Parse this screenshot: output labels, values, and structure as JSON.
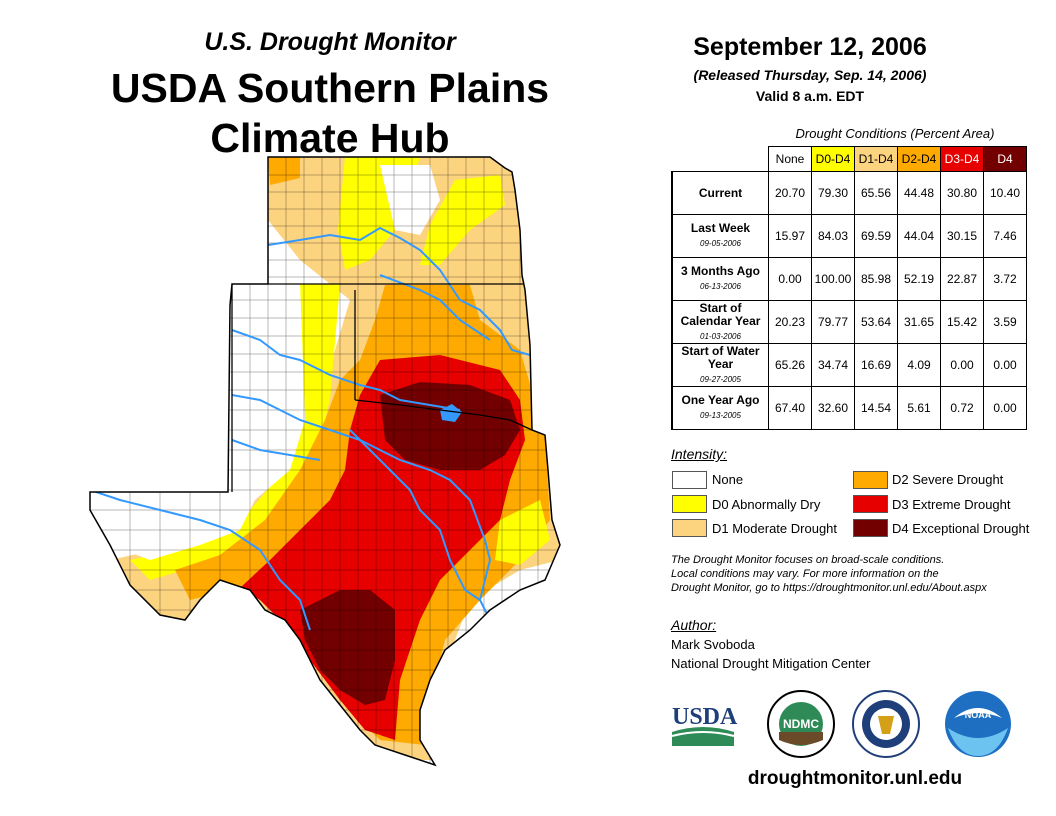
{
  "header": {
    "subtitle": "U.S. Drought Monitor",
    "title_line1": "USDA Southern Plains",
    "title_line2": "Climate Hub"
  },
  "date_block": {
    "date": "September 12, 2006",
    "released": "(Released Thursday, Sep. 14, 2006)",
    "valid": "Valid 8 a.m. EDT"
  },
  "table": {
    "caption": "Drought Conditions (Percent Area)",
    "columns": [
      "None",
      "D0-D4",
      "D1-D4",
      "D2-D4",
      "D3-D4",
      "D4"
    ],
    "rows": [
      {
        "label": "Current",
        "date": "",
        "values": [
          "20.70",
          "79.30",
          "65.56",
          "44.48",
          "30.80",
          "10.40"
        ]
      },
      {
        "label": "Last Week",
        "date": "09-05-2006",
        "values": [
          "15.97",
          "84.03",
          "69.59",
          "44.04",
          "30.15",
          "7.46"
        ]
      },
      {
        "label": "3 Months Ago",
        "date": "06-13-2006",
        "values": [
          "0.00",
          "100.00",
          "85.98",
          "52.19",
          "22.87",
          "3.72"
        ]
      },
      {
        "label": "Start of Calendar Year",
        "date": "01-03-2006",
        "values": [
          "20.23",
          "79.77",
          "53.64",
          "31.65",
          "15.42",
          "3.59"
        ]
      },
      {
        "label": "Start of Water Year",
        "date": "09-27-2005",
        "values": [
          "65.26",
          "34.74",
          "16.69",
          "4.09",
          "0.00",
          "0.00"
        ]
      },
      {
        "label": "One Year Ago",
        "date": "09-13-2005",
        "values": [
          "67.40",
          "32.60",
          "14.54",
          "5.61",
          "0.72",
          "0.00"
        ]
      }
    ]
  },
  "legend": {
    "title": "Intensity:",
    "items": [
      {
        "label": "None",
        "color": "#ffffff"
      },
      {
        "label": "D0 Abnormally Dry",
        "color": "#ffff00"
      },
      {
        "label": "D1 Moderate Drought",
        "color": "#fcd37f"
      },
      {
        "label": "D2 Severe Drought",
        "color": "#ffaa00"
      },
      {
        "label": "D3 Extreme Drought",
        "color": "#e60000"
      },
      {
        "label": "D4 Exceptional Drought",
        "color": "#730000"
      }
    ]
  },
  "note": {
    "line1": "The Drought Monitor focuses on broad-scale conditions.",
    "line2": "Local conditions may vary. For more information on the",
    "line3": "Drought Monitor, go to https://droughtmonitor.unl.edu/About.aspx"
  },
  "author": {
    "title": "Author:",
    "name": "Mark Svoboda",
    "org": "National Drought Mitigation Center"
  },
  "logos": {
    "usda": "USDA",
    "ndmc": "NDMC",
    "noaa": "NOAA"
  },
  "footer": {
    "website": "droughtmonitor.unl.edu"
  },
  "colors": {
    "none": "#ffffff",
    "d0": "#ffff00",
    "d1": "#fcd37f",
    "d2": "#ffaa00",
    "d3": "#e60000",
    "d4": "#730000",
    "river": "#3399ff"
  }
}
